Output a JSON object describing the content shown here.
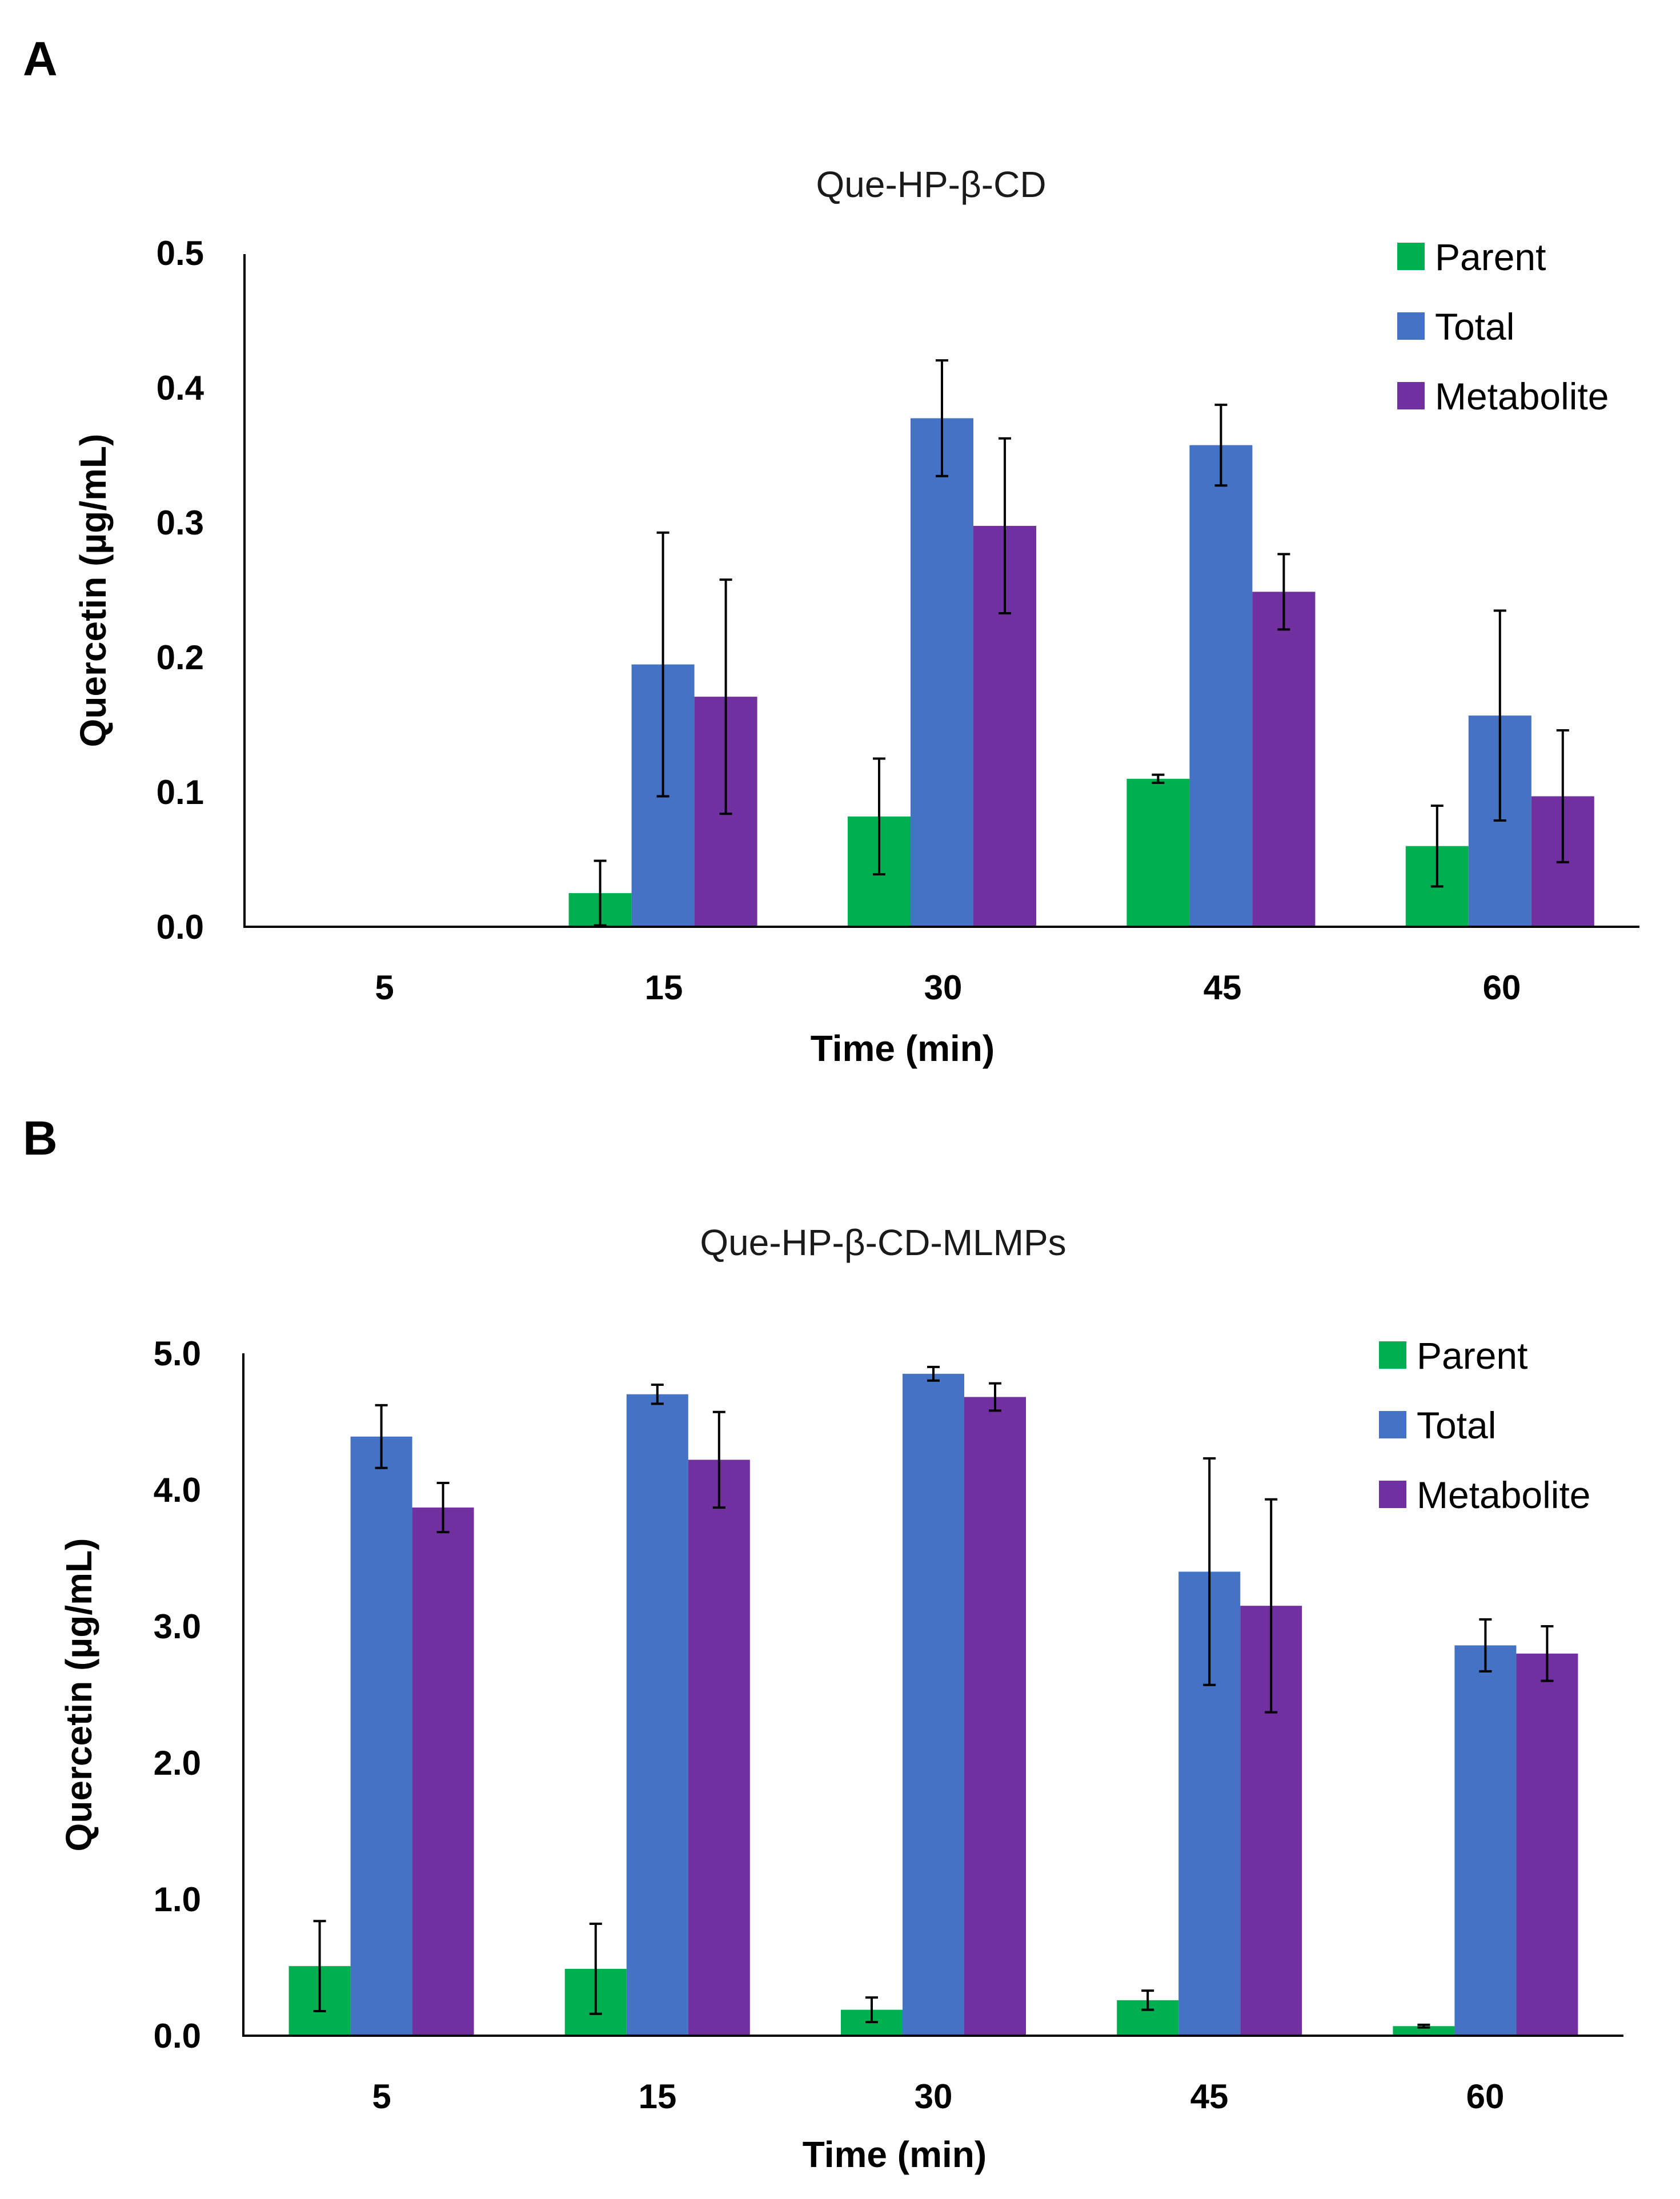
{
  "colors": {
    "parent": "#00B050",
    "total": "#4472C4",
    "metabolite": "#7030A0"
  },
  "chart_data": [
    {
      "panel": "A",
      "type": "bar",
      "title": "Que-HP-β-CD",
      "xlabel": "Time (min)",
      "ylabel": "Quercetin (µg/mL)",
      "categories": [
        "5",
        "15",
        "30",
        "45",
        "60"
      ],
      "ylim": [
        0,
        0.5
      ],
      "yticks": [
        "0.0",
        "0.1",
        "0.2",
        "0.3",
        "0.4",
        "0.5"
      ],
      "legend_position": "top-right",
      "series": [
        {
          "name": "Parent",
          "values": [
            0,
            0.025,
            0.082,
            0.11,
            0.06
          ],
          "errors": [
            0,
            0.024,
            0.043,
            0.003,
            0.03
          ]
        },
        {
          "name": "Total",
          "values": [
            0,
            0.195,
            0.378,
            0.358,
            0.157
          ],
          "errors": [
            0,
            0.098,
            0.043,
            0.03,
            0.078
          ]
        },
        {
          "name": "Metabolite",
          "values": [
            0,
            0.171,
            0.298,
            0.249,
            0.097
          ],
          "errors": [
            0,
            0.087,
            0.065,
            0.028,
            0.049
          ]
        }
      ]
    },
    {
      "panel": "B",
      "type": "bar",
      "title": "Que-HP-β-CD-MLMPs",
      "xlabel": "Time (min)",
      "ylabel": "Quercetin (µg/mL)",
      "categories": [
        "5",
        "15",
        "30",
        "45",
        "60"
      ],
      "ylim": [
        0,
        5.0
      ],
      "yticks": [
        "0.0",
        "1.0",
        "2.0",
        "3.0",
        "4.0",
        "5.0"
      ],
      "legend_position": "top-right",
      "series": [
        {
          "name": "Parent",
          "values": [
            0.51,
            0.49,
            0.19,
            0.26,
            0.07
          ],
          "errors": [
            0.33,
            0.33,
            0.09,
            0.07,
            0.01
          ]
        },
        {
          "name": "Total",
          "values": [
            4.39,
            4.7,
            4.85,
            3.4,
            2.86
          ],
          "errors": [
            0.23,
            0.07,
            0.05,
            0.83,
            0.19
          ]
        },
        {
          "name": "Metabolite",
          "values": [
            3.87,
            4.22,
            4.68,
            3.15,
            2.8
          ],
          "errors": [
            0.18,
            0.35,
            0.1,
            0.78,
            0.2
          ]
        }
      ]
    }
  ]
}
